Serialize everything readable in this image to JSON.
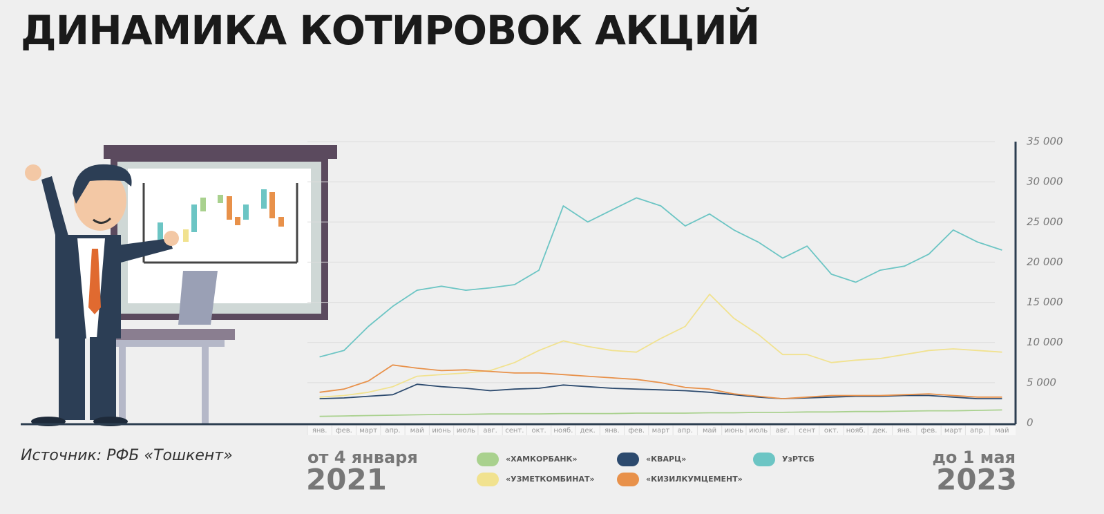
{
  "chart_data": {
    "type": "line",
    "title": "ДИНАМИКА КОТИРОВОК АКЦИЙ",
    "source": "Источник: РФБ «Тошкент»",
    "start_label": "от 4 января",
    "start_year": "2021",
    "end_label": "до 1 мая",
    "end_year": "2023",
    "categories": [
      "янв.",
      "фев.",
      "март",
      "апр.",
      "май",
      "июнь",
      "июль",
      "авг.",
      "сент.",
      "окт.",
      "нояб.",
      "дек.",
      "янв.",
      "фев.",
      "март",
      "апр.",
      "май",
      "июнь",
      "июль",
      "авг.",
      "сент",
      "окт.",
      "нояб.",
      "дек.",
      "янв.",
      "фев.",
      "март",
      "апр.",
      "май"
    ],
    "series": [
      {
        "name": "«ХАМКОРБАНК»",
        "color": "#a9d18e",
        "values": [
          800,
          850,
          900,
          950,
          1000,
          1050,
          1050,
          1100,
          1100,
          1100,
          1150,
          1150,
          1150,
          1200,
          1200,
          1200,
          1250,
          1250,
          1300,
          1300,
          1350,
          1350,
          1400,
          1400,
          1450,
          1500,
          1500,
          1550,
          1600
        ]
      },
      {
        "name": "«УЗМЕТКОМБИНАТ»",
        "color": "#f1e28f",
        "values": [
          3200,
          3400,
          3800,
          4500,
          5800,
          6000,
          6200,
          6500,
          7500,
          9000,
          10200,
          9500,
          9000,
          8800,
          10500,
          12000,
          16000,
          13000,
          11000,
          8500,
          8500,
          7500,
          7800,
          8000,
          8500,
          9000,
          9200,
          9000,
          8800
        ]
      },
      {
        "name": "«КВАРЦ»",
        "color": "#2c4a6e",
        "values": [
          3000,
          3100,
          3300,
          3500,
          4800,
          4500,
          4300,
          4000,
          4200,
          4300,
          4700,
          4500,
          4300,
          4200,
          4100,
          4000,
          3800,
          3500,
          3200,
          3000,
          3100,
          3200,
          3300,
          3300,
          3400,
          3400,
          3200,
          3000,
          3000
        ]
      },
      {
        "name": "«КИЗИЛКУМЦЕМЕНТ»",
        "color": "#e8914a",
        "values": [
          3800,
          4200,
          5200,
          7200,
          6800,
          6500,
          6600,
          6400,
          6200,
          6200,
          6000,
          5800,
          5600,
          5400,
          5000,
          4400,
          4200,
          3600,
          3300,
          3000,
          3200,
          3400,
          3400,
          3400,
          3500,
          3600,
          3400,
          3200,
          3200
        ]
      },
      {
        "name": "УзРТСБ",
        "color": "#6cc5c4",
        "values": [
          8200,
          9000,
          12000,
          14500,
          16500,
          17000,
          16500,
          16800,
          17200,
          19000,
          27000,
          25000,
          26500,
          28000,
          27000,
          24500,
          26000,
          24000,
          22500,
          20500,
          22000,
          18500,
          17500,
          19000,
          19500,
          21000,
          24000,
          22500,
          21500
        ]
      }
    ],
    "ylim": [
      0,
      35000
    ],
    "yticks": [
      0,
      {
        "value": 5000,
        "label": "5 000"
      },
      {
        "value": 10000,
        "label": "10 000"
      },
      {
        "value": 15000,
        "label": "15 000"
      },
      {
        "value": 20000,
        "label": "20 000"
      },
      {
        "value": 25000,
        "label": "25 000"
      },
      {
        "value": 30000,
        "label": "30 000"
      },
      {
        "value": 35000,
        "label": "35 000"
      }
    ],
    "grid": true
  }
}
